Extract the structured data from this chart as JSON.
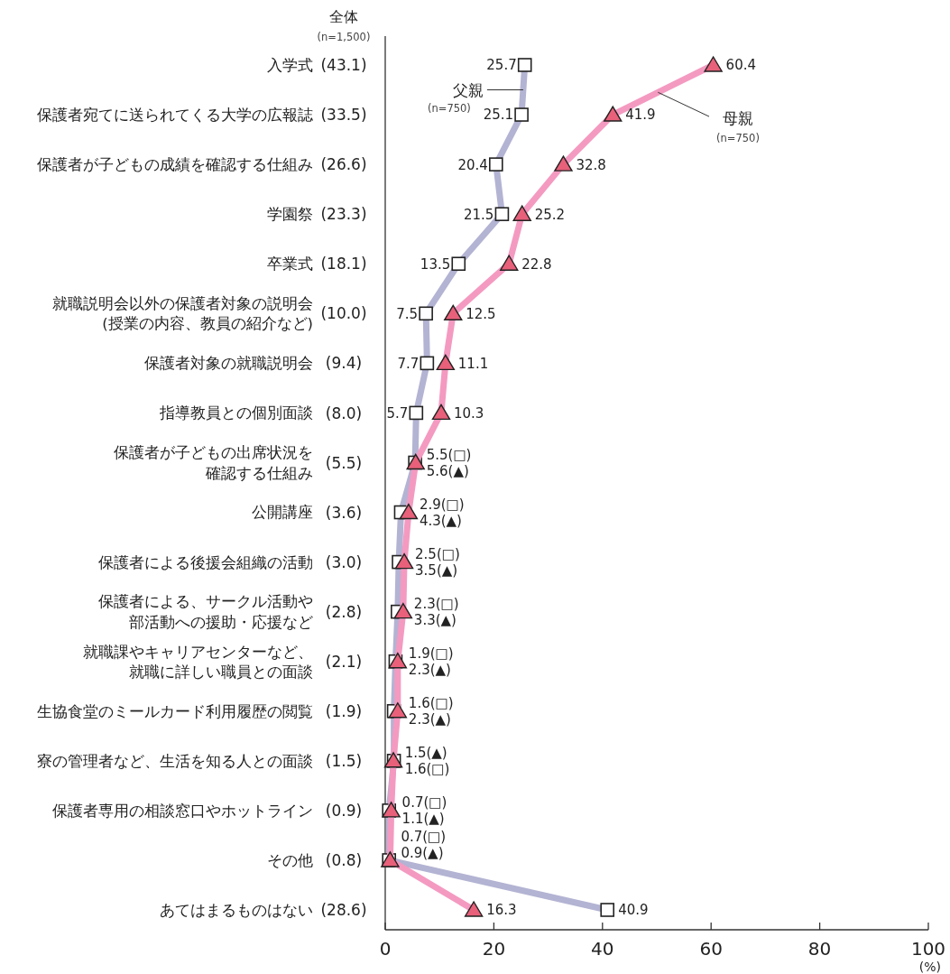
{
  "chart_data": {
    "type": "line",
    "orientation": "horizontal",
    "xlabel": "(%)",
    "categories": [
      "入学式",
      "保護者宛てに送られてくる大学の広報誌",
      "保護者が子どもの成績を確認する仕組み",
      "学園祭",
      "卒業式",
      "就職説明会以外の保護者対象の説明会(授業の内容、教員の紹介など)",
      "保護者対象の就職説明会",
      "指導教員との個別面談",
      "保護者が子どもの出席状況を確認する仕組み",
      "公開講座",
      "保護者による後援会組織の活動",
      "保護者による、サークル活動や部活動への援助・応援など",
      "就職課やキャリアセンターなど、就職に詳しい職員との面談",
      "生協食堂のミールカード利用履歴の閲覧",
      "寮の管理者など、生活を知る人との面談",
      "保護者専用の相談窓口やホットライン",
      "その他",
      "あてはまるものはない"
    ],
    "y2_categories": [
      "(43.1)",
      "(33.5)",
      "(26.6)",
      "(23.3)",
      "(18.1)",
      "(10.0)",
      "(9.4)",
      "(8.0)",
      "(5.5)",
      "(3.6)",
      "(3.0)",
      "(2.8)",
      "(2.1)",
      "(1.9)",
      "(1.5)",
      "(0.9)",
      "(0.8)",
      "(28.6)"
    ],
    "annotations": [
      "全体",
      "(n=1,500)",
      "(n=750)",
      "(n=750)"
    ],
    "series": [
      {
        "name": "父親",
        "color": "#b3b3d3",
        "marker": "square",
        "values": [
          25.7,
          25.1,
          20.4,
          21.5,
          13.5,
          7.5,
          7.7,
          5.7,
          5.5,
          2.9,
          2.5,
          2.3,
          1.9,
          1.6,
          1.6,
          0.7,
          0.7,
          40.9
        ],
        "value_labels": [
          "25.7",
          "25.1",
          "20.4",
          "21.5",
          "13.5",
          "7.5",
          "7.7",
          "5.7",
          "5.5(□)",
          "2.9(□)",
          "2.5(□)",
          "2.3(□)",
          "1.9(□)",
          "1.6(□)",
          "1.6(□)",
          "0.7(□)",
          "0.7(□)",
          "40.9"
        ]
      },
      {
        "name": "母親",
        "color": "#f49ac1",
        "marker": "triangle",
        "values": [
          60.4,
          41.9,
          32.8,
          25.2,
          22.8,
          12.5,
          11.1,
          10.3,
          5.6,
          4.3,
          3.5,
          3.3,
          2.3,
          2.3,
          1.5,
          1.1,
          0.9,
          16.3
        ],
        "value_labels": [
          "60.4",
          "41.9",
          "32.8",
          "25.2",
          "22.8",
          "12.5",
          "11.1",
          "10.3",
          "5.6(▲)",
          "4.3(▲)",
          "3.5(▲)",
          "3.3(▲)",
          "2.3(▲)",
          "2.3(▲)",
          "1.5(▲)",
          "1.1(▲)",
          "0.9(▲)",
          "16.3"
        ]
      }
    ],
    "xlim": [
      0,
      100
    ],
    "xticks": [
      0,
      20,
      40,
      60,
      80,
      100
    ],
    "grid": false,
    "legend": false
  }
}
